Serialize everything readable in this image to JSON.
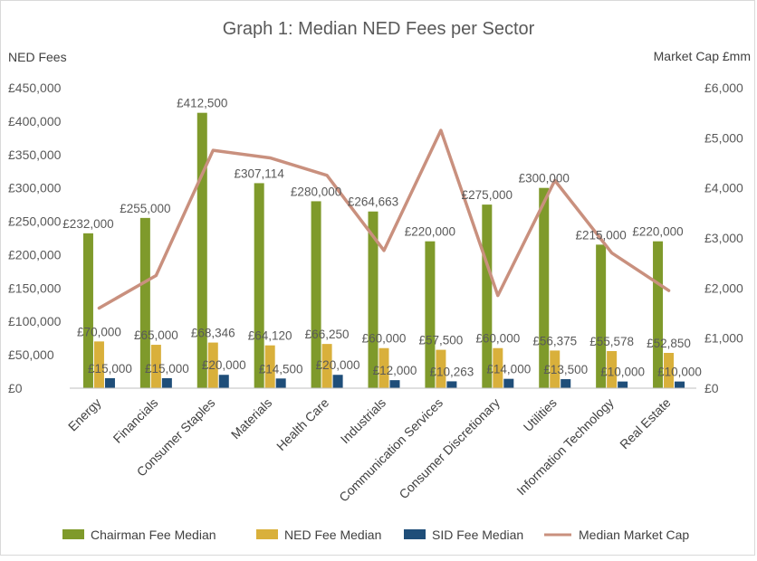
{
  "chart_data": {
    "type": "bar",
    "title": "Graph 1: Median NED Fees per Sector",
    "ylabel": "NED Fees",
    "y2label": "Market Cap £mm",
    "ylim": [
      0,
      450000
    ],
    "y2lim": [
      0,
      6000
    ],
    "yticks": [
      "£0",
      "£50,000",
      "£100,000",
      "£150,000",
      "£200,000",
      "£250,000",
      "£300,000",
      "£350,000",
      "£400,000",
      "£450,000"
    ],
    "y2ticks": [
      "£0",
      "£1,000",
      "£2,000",
      "£3,000",
      "£4,000",
      "£5,000",
      "£6,000"
    ],
    "categories": [
      "Energy",
      "Financials",
      "Consumer Staples",
      "Materials",
      "Health Care",
      "Industrials",
      "Communication Services",
      "Consumer Discretionary",
      "Utilities",
      "Information Technology",
      "Real Estate"
    ],
    "series": [
      {
        "name": "Chairman Fee Median",
        "color": "#7f9a2b",
        "values": [
          232000,
          255000,
          412500,
          307114,
          280000,
          264663,
          220000,
          275000,
          300000,
          215000,
          220000
        ],
        "labels": [
          "£232,000",
          "£255,000",
          "£412,500",
          "£307,114",
          "£280,000",
          "£264,663",
          "£220,000",
          "£275,000",
          "£300,000",
          "£215,000",
          "£220,000"
        ]
      },
      {
        "name": "NED Fee Median",
        "color": "#d9b03b",
        "values": [
          70000,
          65000,
          68346,
          64120,
          66250,
          60000,
          57500,
          60000,
          56375,
          55578,
          52850
        ],
        "labels": [
          "£70,000",
          "£65,000",
          "£68,346",
          "£64,120",
          "£66,250",
          "£60,000",
          "£57,500",
          "£60,000",
          "£56,375",
          "£55,578",
          "£52,850"
        ]
      },
      {
        "name": "SID Fee Median",
        "color": "#1f4e79",
        "values": [
          15000,
          15000,
          20000,
          14500,
          20000,
          12000,
          10263,
          14000,
          13500,
          10000,
          10000
        ],
        "labels": [
          "£15,000",
          "£15,000",
          "£20,000",
          "£14,500",
          "£20,000",
          "£12,000",
          "£10,263",
          "£14,000",
          "£13,500",
          "£10,000",
          "£10,000"
        ]
      },
      {
        "name": "Median Market Cap",
        "type": "line",
        "axis": "right",
        "color": "#c9907e",
        "values": [
          1600,
          2250,
          4750,
          4600,
          4250,
          2750,
          5150,
          1850,
          4150,
          2700,
          1950
        ]
      }
    ],
    "grid": false,
    "legend": "bottom"
  }
}
